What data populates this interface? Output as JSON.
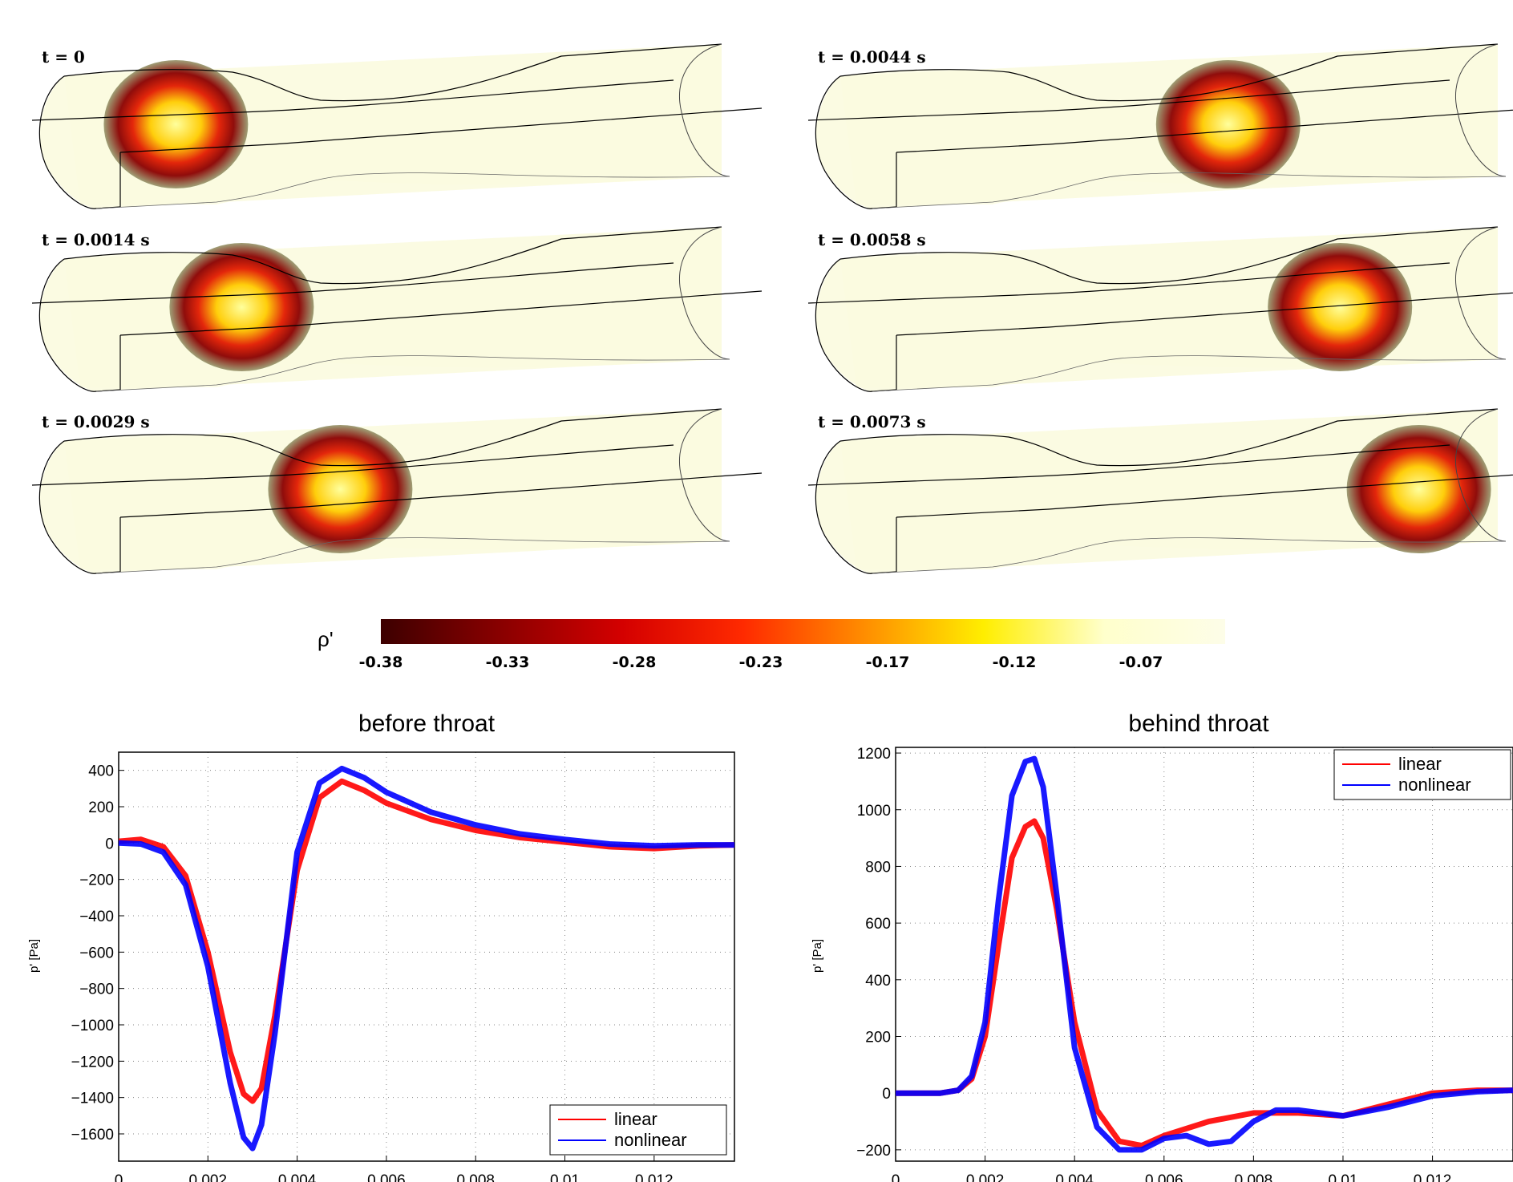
{
  "snapshots": {
    "labels": [
      "t = 0",
      "t = 0.0014 s",
      "t = 0.0029 s",
      "t = 0.0044 s",
      "t = 0.0058 s",
      "t = 0.0073 s"
    ],
    "pulse_positions": [
      0.17,
      0.27,
      0.42,
      0.59,
      0.76,
      0.88
    ]
  },
  "colorbar": {
    "label": "ρ'",
    "ticks": [
      "-0.38",
      "-0.33",
      "-0.28",
      "-0.23",
      "-0.17",
      "-0.12",
      "-0.07"
    ],
    "colors": [
      "#3d0000",
      "#8a0000",
      "#d40000",
      "#ff2a00",
      "#ff8c00",
      "#ffee00",
      "#ffffcc",
      "#fdfde8"
    ]
  },
  "chart_data": [
    {
      "type": "line",
      "title": "before throat",
      "xlabel": "",
      "ylabel": "p' [Pa]",
      "xlim": [
        0,
        0.0138
      ],
      "ylim": [
        -1750,
        500
      ],
      "xticks": [
        0,
        0.002,
        0.004,
        0.006,
        0.008,
        0.01,
        0.012
      ],
      "xtick_labels": [
        "0",
        "0.002",
        "0.004",
        "0.006",
        "0.008",
        "0.01",
        "0.012"
      ],
      "yticks": [
        400,
        200,
        0,
        -200,
        -400,
        -600,
        -800,
        -1000,
        -1200,
        -1400,
        -1600
      ],
      "ytick_labels": [
        "400",
        "200",
        "0",
        "−200",
        "−400",
        "−600",
        "−800",
        "−1000",
        "−1200",
        "−1400",
        "−1600"
      ],
      "grid": true,
      "legend": "bottom-right",
      "series": [
        {
          "name": "linear",
          "color": "#ff0000",
          "x": [
            0,
            0.0005,
            0.001,
            0.0015,
            0.002,
            0.0025,
            0.0028,
            0.003,
            0.0032,
            0.0035,
            0.004,
            0.0045,
            0.005,
            0.0055,
            0.006,
            0.007,
            0.008,
            0.009,
            0.01,
            0.011,
            0.012,
            0.013,
            0.0138
          ],
          "y": [
            10,
            20,
            -20,
            -180,
            -600,
            -1150,
            -1380,
            -1420,
            -1350,
            -950,
            -150,
            250,
            340,
            290,
            220,
            130,
            70,
            30,
            5,
            -20,
            -30,
            -15,
            -10
          ]
        },
        {
          "name": "nonlinear",
          "color": "#0000ff",
          "x": [
            0,
            0.0005,
            0.001,
            0.0015,
            0.002,
            0.0025,
            0.0028,
            0.003,
            0.0032,
            0.0035,
            0.004,
            0.0045,
            0.005,
            0.0055,
            0.006,
            0.007,
            0.008,
            0.009,
            0.01,
            0.011,
            0.012,
            0.013,
            0.0138
          ],
          "y": [
            0,
            -5,
            -50,
            -230,
            -680,
            -1320,
            -1620,
            -1680,
            -1550,
            -1050,
            -50,
            330,
            410,
            360,
            280,
            170,
            100,
            50,
            20,
            -5,
            -15,
            -10,
            -10
          ]
        }
      ]
    },
    {
      "type": "line",
      "title": "behind throat",
      "xlabel": "",
      "ylabel": "p' [Pa]",
      "xlim": [
        0,
        0.0138
      ],
      "ylim": [
        -240,
        1220
      ],
      "xticks": [
        0,
        0.002,
        0.004,
        0.006,
        0.008,
        0.01,
        0.012
      ],
      "xtick_labels": [
        "0",
        "0.002",
        "0.004",
        "0.006",
        "0.008",
        "0.01",
        "0.012"
      ],
      "yticks": [
        1200,
        1000,
        800,
        600,
        400,
        200,
        0,
        -200
      ],
      "ytick_labels": [
        "1200",
        "1000",
        "800",
        "600",
        "400",
        "200",
        "0",
        "−200"
      ],
      "grid": true,
      "legend": "top-right",
      "series": [
        {
          "name": "linear",
          "color": "#ff0000",
          "x": [
            0,
            0.001,
            0.0014,
            0.0017,
            0.002,
            0.0023,
            0.0026,
            0.0029,
            0.0031,
            0.0033,
            0.0036,
            0.004,
            0.0045,
            0.005,
            0.0055,
            0.006,
            0.007,
            0.008,
            0.009,
            0.01,
            0.011,
            0.012,
            0.013,
            0.0138
          ],
          "y": [
            0,
            0,
            10,
            50,
            200,
            520,
            830,
            940,
            960,
            900,
            650,
            250,
            -60,
            -170,
            -185,
            -150,
            -100,
            -70,
            -70,
            -80,
            -40,
            0,
            10,
            10
          ]
        },
        {
          "name": "nonlinear",
          "color": "#0000ff",
          "x": [
            0,
            0.001,
            0.0014,
            0.0017,
            0.002,
            0.0023,
            0.0026,
            0.0029,
            0.0031,
            0.0033,
            0.0036,
            0.004,
            0.0045,
            0.005,
            0.0055,
            0.006,
            0.0065,
            0.007,
            0.0075,
            0.008,
            0.0085,
            0.009,
            0.01,
            0.011,
            0.012,
            0.013,
            0.0138
          ],
          "y": [
            0,
            0,
            10,
            60,
            250,
            680,
            1050,
            1170,
            1180,
            1080,
            700,
            160,
            -120,
            -200,
            -200,
            -160,
            -150,
            -180,
            -170,
            -100,
            -60,
            -60,
            -80,
            -50,
            -10,
            5,
            10
          ]
        }
      ]
    }
  ]
}
